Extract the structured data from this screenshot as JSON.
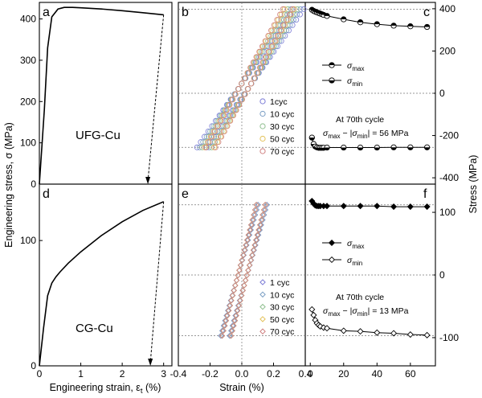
{
  "chart_data": [
    {
      "panel": "a",
      "type": "line",
      "material": "UFG-Cu",
      "xlim": [
        0,
        3.2
      ],
      "ylim": [
        0,
        440
      ],
      "yticks": [
        0,
        100,
        200,
        300,
        400
      ],
      "curve": {
        "x": [
          0,
          0.12,
          0.2,
          0.3,
          0.45,
          0.6,
          0.8,
          1.0,
          1.5,
          2.0,
          2.5,
          3.0
        ],
        "y": [
          0,
          180,
          330,
          405,
          424,
          428,
          428,
          427,
          424,
          420,
          415,
          410
        ]
      },
      "unloading": {
        "x": [
          3.0,
          2.62
        ],
        "y": [
          410,
          0
        ]
      }
    },
    {
      "panel": "d",
      "type": "line",
      "material": "CG-Cu",
      "xlim": [
        0,
        3.2
      ],
      "ylim": [
        0,
        145
      ],
      "yticks": [
        0,
        100
      ],
      "xticks": [
        0,
        1,
        2,
        3
      ],
      "curve": {
        "x": [
          0,
          0.1,
          0.2,
          0.3,
          0.4,
          0.5,
          0.7,
          1.0,
          1.5,
          2.0,
          2.5,
          3.0
        ],
        "y": [
          0,
          30,
          56,
          66,
          71,
          75,
          82,
          91,
          104,
          115,
          124,
          131
        ]
      },
      "unloading": {
        "x": [
          3.0,
          2.68
        ],
        "y": [
          131,
          0
        ]
      }
    },
    {
      "panel": "b",
      "type": "scatter",
      "xlim": [
        -0.4,
        0.4
      ],
      "ylim": [
        -430,
        430
      ],
      "ref_y": [
        -256,
        0,
        398
      ],
      "series": [
        {
          "name": "1cyc",
          "color": "#7b7bd6",
          "amplitude": 0.34
        },
        {
          "name": "10 cyc",
          "color": "#7a9ec4",
          "amplitude": 0.32
        },
        {
          "name": "30 cyc",
          "color": "#8fbf8f",
          "amplitude": 0.3
        },
        {
          "name": "50 cyc",
          "color": "#e3c25a",
          "amplitude": 0.28
        },
        {
          "name": "70 cyc",
          "color": "#cf7f7f",
          "amplitude": 0.27
        }
      ]
    },
    {
      "panel": "e",
      "type": "scatter",
      "xlim": [
        -0.4,
        0.4
      ],
      "ylim": [
        -145,
        145
      ],
      "xticks": [
        -0.4,
        -0.2,
        0.0,
        0.2,
        0.4
      ],
      "ref_y": [
        -97,
        0,
        112
      ],
      "series": [
        {
          "name": "1 cyc",
          "color": "#7b7bd6",
          "amplitude": 0.13
        },
        {
          "name": "10 cyc",
          "color": "#7a9ec4",
          "amplitude": 0.13
        },
        {
          "name": "30 cyc",
          "color": "#8fbf8f",
          "amplitude": 0.12
        },
        {
          "name": "50 cyc",
          "color": "#e3c25a",
          "amplitude": 0.12
        },
        {
          "name": "70 cyc",
          "color": "#cf7f7f",
          "amplitude": 0.12
        }
      ]
    },
    {
      "panel": "c",
      "type": "scatter",
      "xlim": [
        -3,
        75
      ],
      "ylim": [
        -430,
        430
      ],
      "yticks": [
        -400,
        -200,
        0,
        200,
        400
      ],
      "series": [
        {
          "name": "σmax",
          "x": [
            1,
            2,
            3,
            4,
            5,
            6,
            7,
            8,
            10,
            20,
            30,
            40,
            50,
            60,
            70
          ],
          "y": [
            395,
            390,
            386,
            383,
            380,
            377,
            374,
            371,
            366,
            350,
            336,
            327,
            320,
            317,
            314
          ]
        },
        {
          "name": "σmin",
          "x": [
            1,
            2,
            3,
            4,
            5,
            6,
            7,
            8,
            10,
            20,
            30,
            40,
            50,
            60,
            70
          ],
          "y": [
            -210,
            -240,
            -252,
            -256,
            -258,
            -258,
            -258,
            -258,
            -257,
            -257,
            -257,
            -257,
            -256,
            -256,
            -256
          ]
        }
      ],
      "annotation": {
        "line1": "At 70th cycle",
        "result": "56 MPa"
      }
    },
    {
      "panel": "f",
      "type": "scatter",
      "xlim": [
        -3,
        75
      ],
      "ylim": [
        -145,
        145
      ],
      "yticks": [
        -100,
        0,
        100
      ],
      "xticks": [
        0,
        20,
        40,
        60
      ],
      "series": [
        {
          "name": "σmax",
          "x": [
            1,
            2,
            3,
            4,
            5,
            6,
            8,
            10,
            20,
            30,
            40,
            50,
            60,
            70
          ],
          "y": [
            118,
            114,
            111,
            110,
            110,
            110,
            110,
            110,
            110,
            110,
            110,
            109,
            109,
            109
          ]
        },
        {
          "name": "σmin",
          "x": [
            1,
            2,
            3,
            4,
            5,
            6,
            8,
            10,
            20,
            30,
            40,
            50,
            60,
            70
          ],
          "y": [
            -55,
            -64,
            -72,
            -77,
            -80,
            -82,
            -84,
            -85,
            -89,
            -90,
            -92,
            -93,
            -95,
            -96
          ]
        }
      ],
      "annotation": {
        "line1": "At 70th cycle",
        "result": "13 MPa"
      }
    }
  ],
  "labels": {
    "panel_a": "a",
    "panel_b": "b",
    "panel_c": "c",
    "panel_d": "d",
    "panel_e": "e",
    "panel_f": "f",
    "mat_top": "UFG-Cu",
    "mat_bottom": "CG-Cu",
    "ylabel_left": "Engineering stress, σ (MPa)",
    "xlabel_left": "Engineering strain, ε",
    "xlabel_left_sub": "t",
    "xlabel_left_unit": " (%)",
    "xlabel_mid": "Strain (%)",
    "ylabel_right": "Stress (MPa)",
    "sigma": "σ",
    "sub_max": "max",
    "sub_min": "min",
    "minus": "−",
    "bar": "|",
    "eq": " = "
  },
  "ticks": {
    "left_top": [
      "0",
      "100",
      "200",
      "300",
      "400"
    ],
    "left_bottom": [
      "0",
      "100"
    ],
    "left_x": [
      "0",
      "1",
      "2",
      "3"
    ],
    "mid_x": [
      "-0.4",
      "-0.2",
      "0.0",
      "0.2",
      "0.4"
    ],
    "right_top": [
      "-400",
      "-200",
      "0",
      "200",
      "400"
    ],
    "right_bottom": [
      "-100",
      "0",
      "100"
    ],
    "right_x": [
      "0",
      "20",
      "40",
      "60"
    ]
  }
}
